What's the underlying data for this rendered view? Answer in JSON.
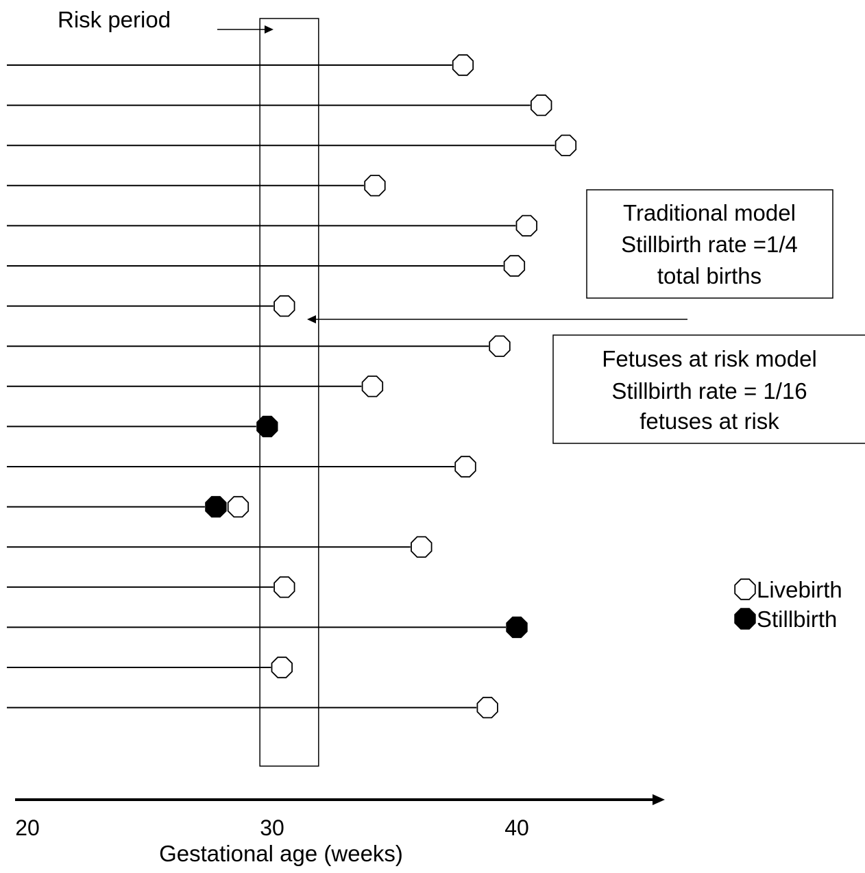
{
  "diagram": {
    "risk_period_label": "Risk period",
    "risk_window_weeks": [
      29.5,
      31.9
    ],
    "traditional_model": {
      "lines": [
        "Traditional model",
        "Stillbirth rate =1/4",
        "total births"
      ]
    },
    "fetuses_at_risk_model": {
      "lines": [
        "Fetuses at risk model",
        "Stillbirth rate = 1/16",
        "fetuses at risk"
      ]
    },
    "legend": {
      "livebirth": "Livebirth",
      "stillbirth": "Stillbirth"
    },
    "x_axis": {
      "title": "Gestational age (weeks)",
      "ticks": [
        "20",
        "30",
        "40"
      ],
      "min": 20,
      "max": 46.5
    },
    "pregnancies": [
      {
        "end_week": 37.8,
        "outcome": "livebirth"
      },
      {
        "end_week": 41.0,
        "outcome": "livebirth"
      },
      {
        "end_week": 42.0,
        "outcome": "livebirth"
      },
      {
        "end_week": 34.2,
        "outcome": "livebirth"
      },
      {
        "end_week": 40.4,
        "outcome": "livebirth"
      },
      {
        "end_week": 39.9,
        "outcome": "livebirth"
      },
      {
        "end_week": 30.5,
        "outcome": "livebirth"
      },
      {
        "end_week": 39.3,
        "outcome": "livebirth"
      },
      {
        "end_week": 34.1,
        "outcome": "livebirth"
      },
      {
        "end_week": 29.8,
        "outcome": "stillbirth"
      },
      {
        "end_week": 37.9,
        "outcome": "livebirth"
      },
      {
        "end_week": 27.7,
        "outcome": "stillbirth",
        "extra_livebirth_week": 28.5
      },
      {
        "end_week": 36.1,
        "outcome": "livebirth"
      },
      {
        "end_week": 30.5,
        "outcome": "livebirth"
      },
      {
        "end_week": 40.0,
        "outcome": "stillbirth"
      },
      {
        "end_week": 30.4,
        "outcome": "livebirth"
      },
      {
        "end_week": 38.8,
        "outcome": "livebirth"
      }
    ]
  }
}
